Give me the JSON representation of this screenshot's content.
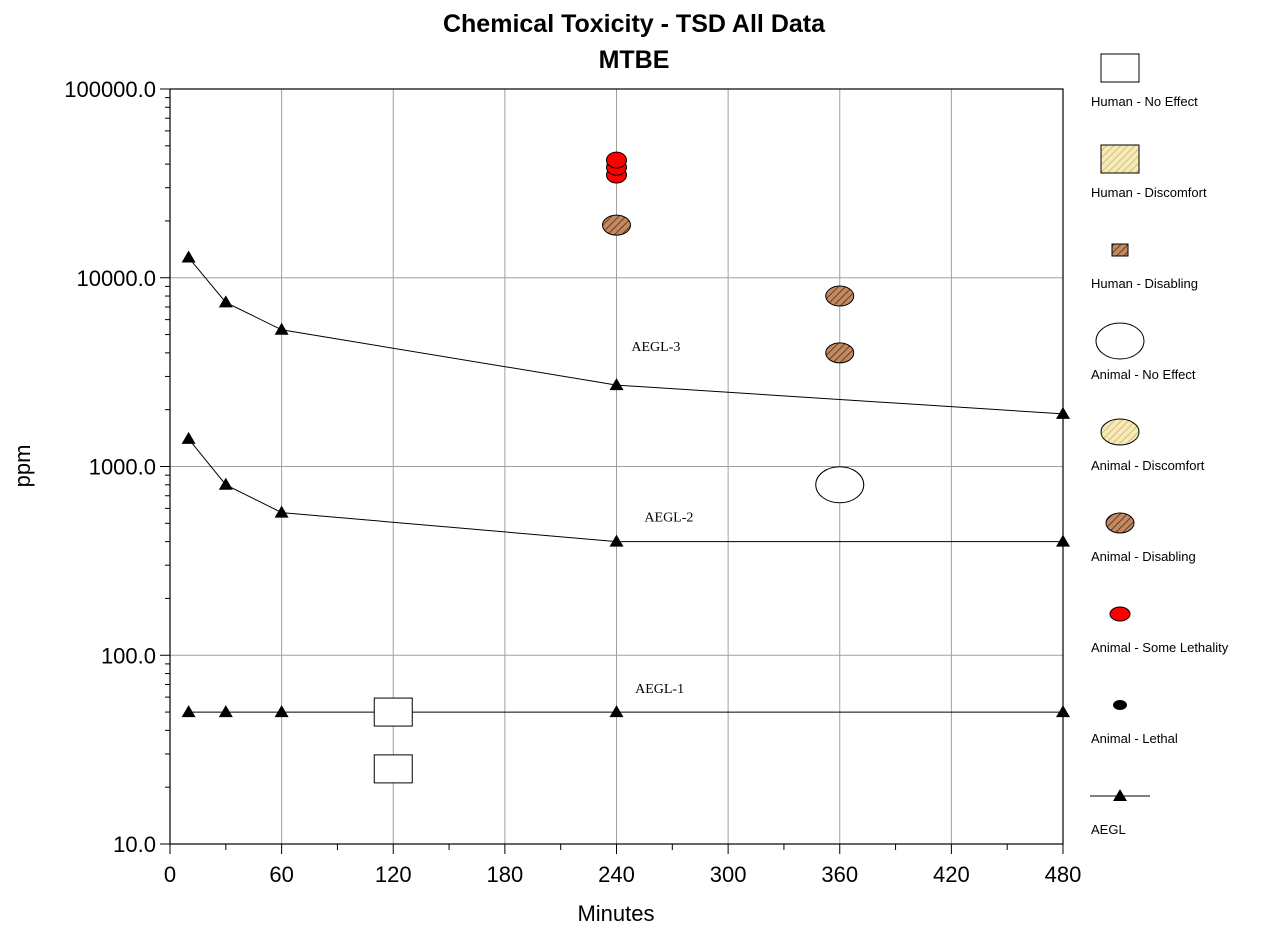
{
  "chart_data": {
    "type": "scatter",
    "title": "Chemical Toxicity - TSD All Data",
    "subtitle": "MTBE",
    "xlabel": "Minutes",
    "ylabel": "ppm",
    "xlim": [
      0,
      480
    ],
    "ylim": [
      10,
      100000
    ],
    "yscale": "log",
    "grid": true,
    "x_ticks": [
      0,
      60,
      120,
      180,
      240,
      300,
      360,
      420,
      480
    ],
    "x_tick_labels": [
      "0",
      "60",
      "120",
      "180",
      "240",
      "300",
      "360",
      "420",
      "480"
    ],
    "y_ticks": [
      10,
      100,
      1000,
      10000,
      100000
    ],
    "y_tick_labels": [
      "10.0",
      "100.0",
      "1000.0",
      "10000.0",
      "100000.0"
    ],
    "legend_position": "right",
    "legend": [
      {
        "label": "Human - No Effect",
        "symbol": "square",
        "fill": "#ffffff"
      },
      {
        "label": "Human - Discomfort",
        "symbol": "square",
        "fill": "#f2e3a0",
        "hatch": true
      },
      {
        "label": "Human - Disabling",
        "symbol": "small-square",
        "fill": "#b87a55",
        "hatch": true
      },
      {
        "label": "Animal - No Effect",
        "symbol": "ellipse",
        "fill": "#ffffff"
      },
      {
        "label": "Animal - Discomfort",
        "symbol": "ellipse",
        "fill": "#f2e3a0",
        "hatch": true
      },
      {
        "label": "Animal - Disabling",
        "symbol": "ellipse",
        "fill": "#b87a55",
        "hatch": true
      },
      {
        "label": "Animal - Some Lethality",
        "symbol": "ellipse",
        "fill": "#ff0000"
      },
      {
        "label": "Animal - Lethal",
        "symbol": "dot",
        "fill": "#000000"
      },
      {
        "label": "AEGL",
        "symbol": "line-triangle",
        "fill": "#000000"
      }
    ],
    "aegl_lines": [
      {
        "label": "AEGL-3",
        "x": [
          10,
          30,
          60,
          240,
          480
        ],
        "y": [
          12800,
          7400,
          5300,
          2700,
          1900
        ]
      },
      {
        "label": "AEGL-2",
        "x": [
          10,
          30,
          60,
          240,
          480
        ],
        "y": [
          1400,
          800,
          570,
          400,
          400
        ]
      },
      {
        "label": "AEGL-1",
        "x": [
          10,
          30,
          60,
          240,
          480
        ],
        "y": [
          50,
          50,
          50,
          50,
          50
        ]
      }
    ],
    "aegl_label_positions": [
      {
        "label": "AEGL-3",
        "x": 248,
        "y": 4100
      },
      {
        "label": "AEGL-2",
        "x": 255,
        "y": 510
      },
      {
        "label": "AEGL-1",
        "x": 250,
        "y": 63
      }
    ],
    "points": [
      {
        "category": "Human - No Effect",
        "x": 120,
        "y": 50
      },
      {
        "category": "Human - No Effect",
        "x": 120,
        "y": 25
      },
      {
        "category": "Animal - Some Lethality",
        "x": 240,
        "y": 35000
      },
      {
        "category": "Animal - Some Lethality",
        "x": 240,
        "y": 38500
      },
      {
        "category": "Animal - Some Lethality",
        "x": 240,
        "y": 42000
      },
      {
        "category": "Animal - Disabling",
        "x": 240,
        "y": 19000
      },
      {
        "category": "Animal - Disabling",
        "x": 360,
        "y": 8000
      },
      {
        "category": "Animal - Disabling",
        "x": 360,
        "y": 4000
      },
      {
        "category": "Animal - No Effect",
        "x": 360,
        "y": 800
      }
    ]
  }
}
